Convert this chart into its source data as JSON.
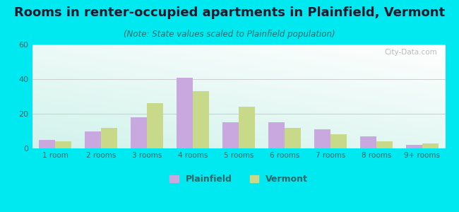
{
  "title": "Rooms in renter-occupied apartments in Plainfield, Vermont",
  "subtitle": "(Note: State values scaled to Plainfield population)",
  "categories": [
    "1 room",
    "2 rooms",
    "3 rooms",
    "4 rooms",
    "5 rooms",
    "6 rooms",
    "7 rooms",
    "8 rooms",
    "9+ rooms"
  ],
  "plainfield_values": [
    5,
    10,
    18,
    41,
    15,
    15,
    11,
    7,
    2
  ],
  "vermont_values": [
    4,
    12,
    26,
    33,
    24,
    12,
    8,
    4,
    3
  ],
  "plainfield_color": "#c9a8e0",
  "vermont_color": "#c8d98a",
  "background_outer": "#00e8f0",
  "ylim": [
    0,
    60
  ],
  "yticks": [
    0,
    20,
    40,
    60
  ],
  "bar_width": 0.35,
  "title_fontsize": 13,
  "subtitle_fontsize": 8.5,
  "legend_labels": [
    "Plainfield",
    "Vermont"
  ],
  "watermark": "City-Data.com"
}
